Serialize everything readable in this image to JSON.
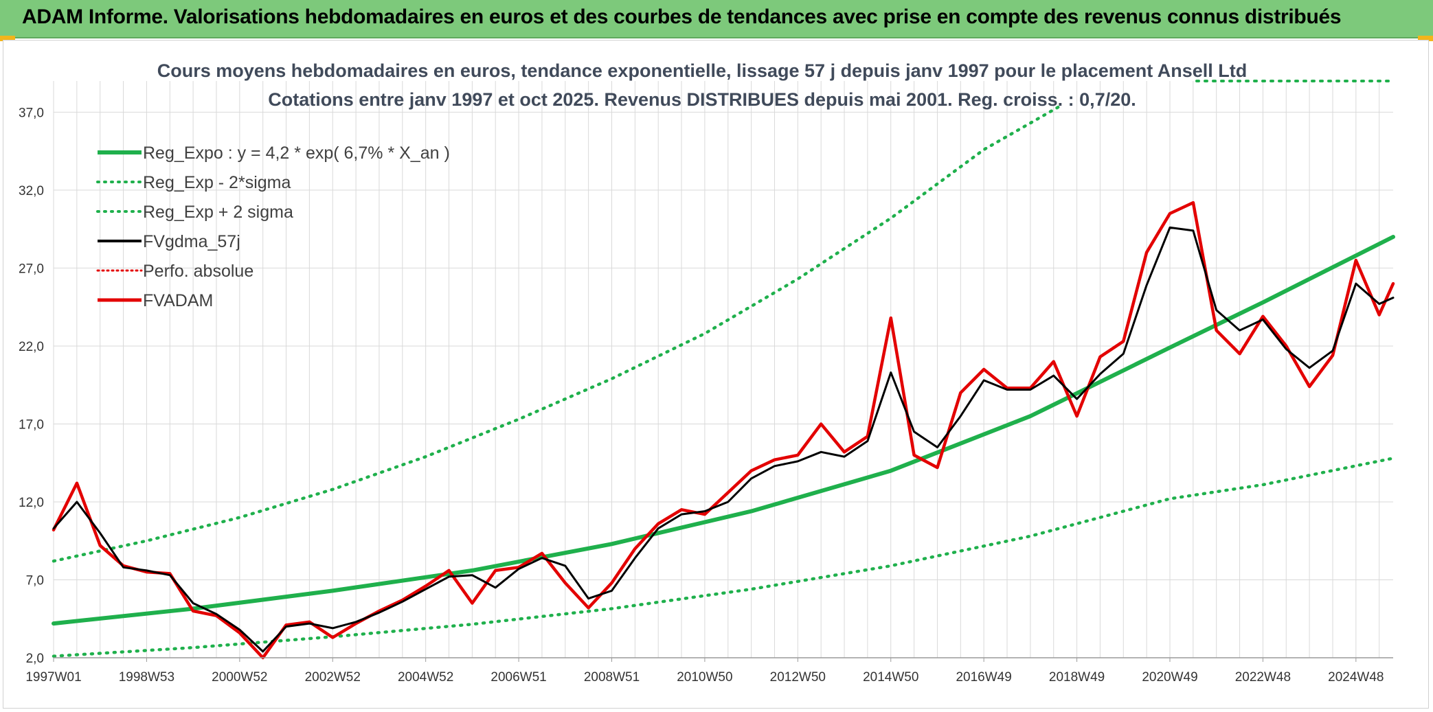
{
  "header": {
    "title": "ADAM Informe. Valorisations hebdomadaires en euros et des courbes de tendances avec prise en compte des revenus connus distribués"
  },
  "colors": {
    "header_bg": "#7dc97b",
    "accent": "#f3b51b",
    "reg": "#1fb04c",
    "band": "#1fb04c",
    "smooth": "#000000",
    "perf": "#e30000",
    "price": "#e30000",
    "grid": "#d9d9d9"
  },
  "chart_data": {
    "type": "line",
    "title": [
      "Cours moyens hebdomadaires en euros, tendance exponentielle, lissage 57 j depuis janv 1997 pour le placement Ansell Ltd",
      "Cotations entre janv 1997 et oct 2025. Revenus DISTRIBUES depuis mai 2001. Reg. croiss. : 0,7/20."
    ],
    "xlabel": "",
    "ylabel": "",
    "ylim": [
      2,
      39
    ],
    "xlim": [
      1997.0,
      2025.8
    ],
    "y_ticks": [
      2,
      7,
      12,
      17,
      22,
      27,
      32,
      37
    ],
    "y_tick_labels": [
      "2,0",
      "7,0",
      "12,0",
      "17,0",
      "22,0",
      "27,0",
      "32,0",
      "37,0"
    ],
    "x_ticks": [
      1997.0,
      1999.0,
      2001.0,
      2003.0,
      2005.0,
      2007.0,
      2009.0,
      2011.0,
      2013.0,
      2015.0,
      2017.0,
      2019.0,
      2021.0,
      2023.0,
      2025.0
    ],
    "x_tick_labels": [
      "1997W01",
      "1998W53",
      "2000W52",
      "2002W52",
      "2004W52",
      "2006W51",
      "2008W51",
      "2010W50",
      "2012W50",
      "2014W50",
      "2016W49",
      "2018W49",
      "2020W49",
      "2022W48",
      "2024W48"
    ],
    "grid": true,
    "legend_position": "top-left",
    "series": [
      {
        "name": "Reg_Expo : y = 4,2 * exp( 6,7% *  X_an )",
        "style": "solid-thick",
        "color": "#1fb04c",
        "x": [
          1997,
          2000,
          2003,
          2006,
          2009,
          2012,
          2015,
          2018,
          2021,
          2023,
          2025.8
        ],
        "values": [
          4.2,
          5.15,
          6.3,
          7.6,
          9.3,
          11.4,
          14.0,
          17.5,
          21.9,
          24.8,
          29.0
        ]
      },
      {
        "name": "Reg_Exp - 2*sigma",
        "style": "dotted",
        "color": "#1fb04c",
        "x": [
          1997,
          2000,
          2003,
          2006,
          2009,
          2012,
          2015,
          2018,
          2021,
          2023,
          2025.8
        ],
        "values": [
          2.1,
          2.65,
          3.35,
          4.15,
          5.15,
          6.4,
          7.9,
          9.8,
          12.2,
          13.1,
          14.8
        ]
      },
      {
        "name": "Reg_Exp + 2 sigma",
        "style": "dotted",
        "color": "#1fb04c",
        "x": [
          1997,
          1999,
          2001,
          2003,
          2005,
          2007,
          2009,
          2011,
          2013,
          2015,
          2017,
          2018.7
        ],
        "values": [
          8.2,
          9.5,
          11.0,
          12.8,
          14.9,
          17.3,
          19.9,
          22.8,
          26.3,
          30.2,
          34.6,
          37.5
        ]
      },
      {
        "name": "FVgdma_57j",
        "style": "solid",
        "color": "#000000",
        "x": [
          1997.0,
          1997.5,
          1998.0,
          1998.5,
          1999.0,
          1999.5,
          2000.0,
          2000.5,
          2001.0,
          2001.5,
          2002.0,
          2002.5,
          2003.0,
          2003.5,
          2004.0,
          2004.5,
          2005.0,
          2005.5,
          2006.0,
          2006.5,
          2007.0,
          2007.5,
          2008.0,
          2008.5,
          2009.0,
          2009.5,
          2010.0,
          2010.5,
          2011.0,
          2011.5,
          2012.0,
          2012.5,
          2013.0,
          2013.5,
          2014.0,
          2014.5,
          2015.0,
          2015.5,
          2016.0,
          2016.5,
          2017.0,
          2017.5,
          2018.0,
          2018.5,
          2019.0,
          2019.5,
          2020.0,
          2020.5,
          2021.0,
          2021.5,
          2022.0,
          2022.5,
          2023.0,
          2023.5,
          2024.0,
          2024.5,
          2025.0,
          2025.5,
          2025.8
        ],
        "values": [
          10.3,
          12.0,
          10.0,
          7.8,
          7.6,
          7.3,
          5.5,
          4.8,
          3.8,
          2.4,
          4.0,
          4.2,
          3.9,
          4.3,
          4.9,
          5.6,
          6.4,
          7.2,
          7.3,
          6.5,
          7.7,
          8.4,
          7.9,
          5.8,
          6.3,
          8.4,
          10.3,
          11.2,
          11.4,
          12.0,
          13.5,
          14.3,
          14.6,
          15.2,
          14.9,
          15.9,
          20.3,
          16.5,
          15.5,
          17.5,
          19.8,
          19.2,
          19.2,
          20.1,
          18.6,
          20.2,
          21.5,
          25.9,
          29.6,
          29.4,
          24.3,
          23.0,
          23.7,
          21.8,
          20.6,
          21.7,
          26.0,
          24.7,
          25.1
        ]
      },
      {
        "name": "Perfo. absolue",
        "style": "dotted",
        "color": "#e30000",
        "x": [],
        "values": []
      },
      {
        "name": "FVADAM",
        "style": "solid-thick",
        "color": "#e30000",
        "x": [
          1997.0,
          1997.5,
          1998.0,
          1998.5,
          1999.0,
          1999.5,
          2000.0,
          2000.5,
          2001.0,
          2001.5,
          2002.0,
          2002.5,
          2003.0,
          2003.5,
          2004.0,
          2004.5,
          2005.0,
          2005.5,
          2006.0,
          2006.5,
          2007.0,
          2007.5,
          2008.0,
          2008.5,
          2009.0,
          2009.5,
          2010.0,
          2010.5,
          2011.0,
          2011.5,
          2012.0,
          2012.5,
          2013.0,
          2013.5,
          2014.0,
          2014.5,
          2015.0,
          2015.5,
          2016.0,
          2016.5,
          2017.0,
          2017.5,
          2018.0,
          2018.5,
          2019.0,
          2019.5,
          2020.0,
          2020.5,
          2021.0,
          2021.5,
          2022.0,
          2022.5,
          2023.0,
          2023.5,
          2024.0,
          2024.5,
          2025.0,
          2025.5,
          2025.8
        ],
        "values": [
          10.2,
          13.2,
          9.2,
          7.9,
          7.5,
          7.4,
          5.0,
          4.7,
          3.6,
          2.0,
          4.1,
          4.3,
          3.3,
          4.2,
          5.0,
          5.7,
          6.6,
          7.6,
          5.5,
          7.6,
          7.8,
          8.7,
          6.8,
          5.2,
          6.8,
          9.0,
          10.6,
          11.5,
          11.2,
          12.6,
          14.0,
          14.7,
          15.0,
          17.0,
          15.2,
          16.2,
          23.8,
          15.0,
          14.2,
          19.0,
          20.5,
          19.3,
          19.3,
          21.0,
          17.5,
          21.3,
          22.3,
          28.0,
          30.5,
          31.2,
          23.0,
          21.5,
          23.9,
          22.0,
          19.4,
          21.4,
          27.5,
          24.0,
          26.0
        ]
      }
    ]
  }
}
